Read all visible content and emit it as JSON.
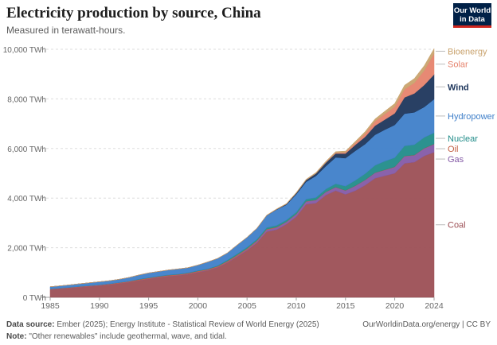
{
  "header": {
    "title": "Electricity production by source, China",
    "subtitle": "Measured in terawatt-hours."
  },
  "logo": {
    "line1": "Our World",
    "line2": "in Data"
  },
  "footer": {
    "source_label": "Data source:",
    "source_text": "Ember (2025); Energy Institute - Statistical Review of World Energy (2025)",
    "note_label": "Note:",
    "note_text": "\"Other renewables\" include geothermal, wave, and tidal.",
    "right_text": "OurWorldinData.org/energy | CC BY"
  },
  "chart_data": {
    "type": "area",
    "stacked": true,
    "title": "Electricity production by source, China",
    "subtitle": "Measured in terawatt-hours.",
    "xlabel": "",
    "ylabel": "",
    "xlim": [
      1985,
      2024
    ],
    "ylim": [
      0,
      10000
    ],
    "grid": true,
    "x_ticks": [
      1985,
      1990,
      1995,
      2000,
      2005,
      2010,
      2015,
      2020,
      2024
    ],
    "y_ticks": [
      0,
      2000,
      4000,
      6000,
      8000,
      10000
    ],
    "y_tick_labels": [
      "0 TWh",
      "2,000 TWh",
      "4,000 TWh",
      "6,000 TWh",
      "8,000 TWh",
      "10,000 TWh"
    ],
    "legend_placement": "right (inline labels)",
    "x": [
      1985,
      1986,
      1987,
      1988,
      1989,
      1990,
      1991,
      1992,
      1993,
      1994,
      1995,
      1996,
      1997,
      1998,
      1999,
      2000,
      2001,
      2002,
      2003,
      2004,
      2005,
      2006,
      2007,
      2008,
      2009,
      2010,
      2011,
      2012,
      2013,
      2014,
      2015,
      2016,
      2017,
      2018,
      2019,
      2020,
      2021,
      2022,
      2023,
      2024
    ],
    "series": [
      {
        "name": "Coal",
        "color": "#9c4f55",
        "values": [
          310,
          340,
          375,
          410,
          440,
          470,
          510,
          560,
          610,
          680,
          740,
          800,
          850,
          880,
          930,
          1010,
          1080,
          1200,
          1400,
          1640,
          1890,
          2200,
          2650,
          2730,
          2950,
          3250,
          3750,
          3800,
          4120,
          4300,
          4150,
          4300,
          4520,
          4800,
          4900,
          5000,
          5400,
          5450,
          5700,
          5850
        ]
      },
      {
        "name": "Gas",
        "color": "#845aa6",
        "values": [
          5,
          5,
          5,
          5,
          5,
          5,
          6,
          6,
          6,
          7,
          8,
          9,
          10,
          11,
          12,
          14,
          15,
          17,
          20,
          25,
          35,
          50,
          70,
          80,
          80,
          95,
          110,
          115,
          120,
          135,
          150,
          190,
          205,
          215,
          230,
          250,
          285,
          275,
          300,
          320
        ]
      },
      {
        "name": "Oil",
        "color": "#c35f44",
        "values": [
          20,
          22,
          22,
          23,
          24,
          25,
          26,
          28,
          30,
          30,
          30,
          30,
          30,
          30,
          32,
          35,
          35,
          35,
          38,
          40,
          40,
          35,
          30,
          20,
          15,
          15,
          12,
          10,
          10,
          10,
          10,
          10,
          10,
          10,
          12,
          12,
          12,
          12,
          12,
          12
        ]
      },
      {
        "name": "Nuclear",
        "color": "#218c89",
        "values": [
          0,
          0,
          0,
          0,
          0,
          0,
          1,
          2,
          3,
          14,
          13,
          14,
          14,
          14,
          15,
          17,
          17,
          25,
          43,
          50,
          53,
          55,
          62,
          68,
          70,
          74,
          86,
          97,
          112,
          133,
          171,
          213,
          248,
          295,
          348,
          366,
          408,
          418,
          435,
          451
        ]
      },
      {
        "name": "Hydropower",
        "color": "#3f7fc9",
        "values": [
          92,
          95,
          100,
          109,
          118,
          127,
          125,
          130,
          151,
          168,
          191,
          188,
          196,
          208,
          205,
          222,
          277,
          288,
          284,
          353,
          397,
          435,
          485,
          637,
          616,
          722,
          699,
          872,
          921,
          1064,
          1130,
          1193,
          1194,
          1232,
          1270,
          1322,
          1300,
          1303,
          1226,
          1354
        ]
      },
      {
        "name": "Wind",
        "color": "#1e365c",
        "values": [
          0,
          0,
          0,
          0,
          0,
          0,
          0,
          0,
          0,
          0,
          1,
          1,
          1,
          1,
          1,
          1,
          1,
          1,
          2,
          2,
          2,
          4,
          6,
          13,
          28,
          45,
          70,
          96,
          141,
          156,
          186,
          241,
          295,
          366,
          406,
          467,
          656,
          763,
          886,
          997
        ]
      },
      {
        "name": "Solar",
        "color": "#e6836d",
        "values": [
          0,
          0,
          0,
          0,
          0,
          0,
          0,
          0,
          0,
          0,
          0,
          0,
          0,
          0,
          0,
          0,
          0,
          0,
          0,
          0,
          0,
          0,
          0,
          0,
          0,
          1,
          3,
          7,
          16,
          29,
          45,
          75,
          131,
          178,
          225,
          261,
          327,
          427,
          584,
          834
        ]
      },
      {
        "name": "Bioenergy",
        "color": "#c9a36e",
        "values": [
          0,
          0,
          0,
          0,
          0,
          0,
          0,
          0,
          0,
          0,
          1,
          1,
          1,
          2,
          2,
          2,
          3,
          4,
          5,
          6,
          8,
          10,
          13,
          17,
          21,
          25,
          30,
          36,
          40,
          46,
          53,
          65,
          80,
          94,
          113,
          135,
          163,
          176,
          196,
          208
        ]
      }
    ]
  }
}
